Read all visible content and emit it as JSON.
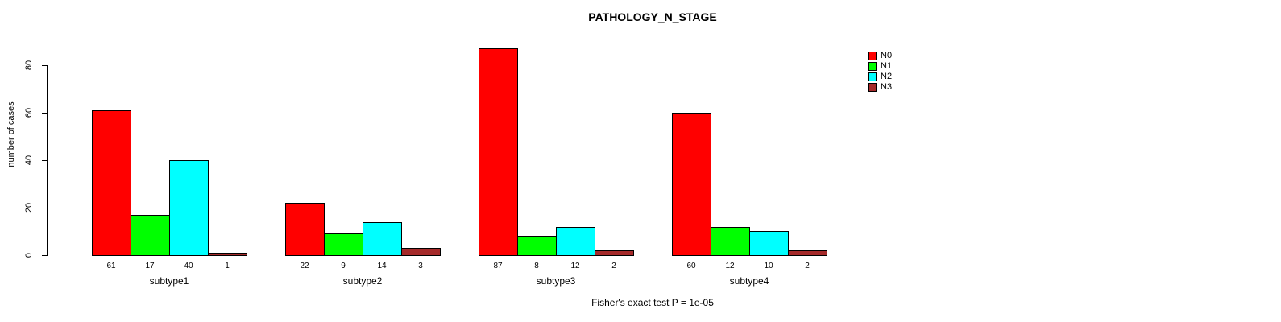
{
  "chart_data": {
    "type": "bar",
    "title": "PATHOLOGY_N_STAGE",
    "xlabel": "",
    "ylabel": "number of cases",
    "ylim": [
      0,
      80
    ],
    "yticks": [
      0,
      20,
      40,
      60,
      80
    ],
    "grid": false,
    "legend_position": "top-right",
    "bar_value_labels_shown": true,
    "categories": [
      "subtype1",
      "subtype2",
      "subtype3",
      "subtype4"
    ],
    "series": [
      {
        "name": "N0",
        "color": "#FF0000",
        "values": [
          61,
          22,
          87,
          60
        ]
      },
      {
        "name": "N1",
        "color": "#00FF00",
        "values": [
          17,
          9,
          8,
          12
        ]
      },
      {
        "name": "N2",
        "color": "#00FFFF",
        "values": [
          40,
          14,
          12,
          10
        ]
      },
      {
        "name": "N3",
        "color": "#A52A2A",
        "values": [
          1,
          3,
          2,
          2
        ]
      }
    ],
    "footnote": "Fisher's exact test P = 1e-05"
  }
}
